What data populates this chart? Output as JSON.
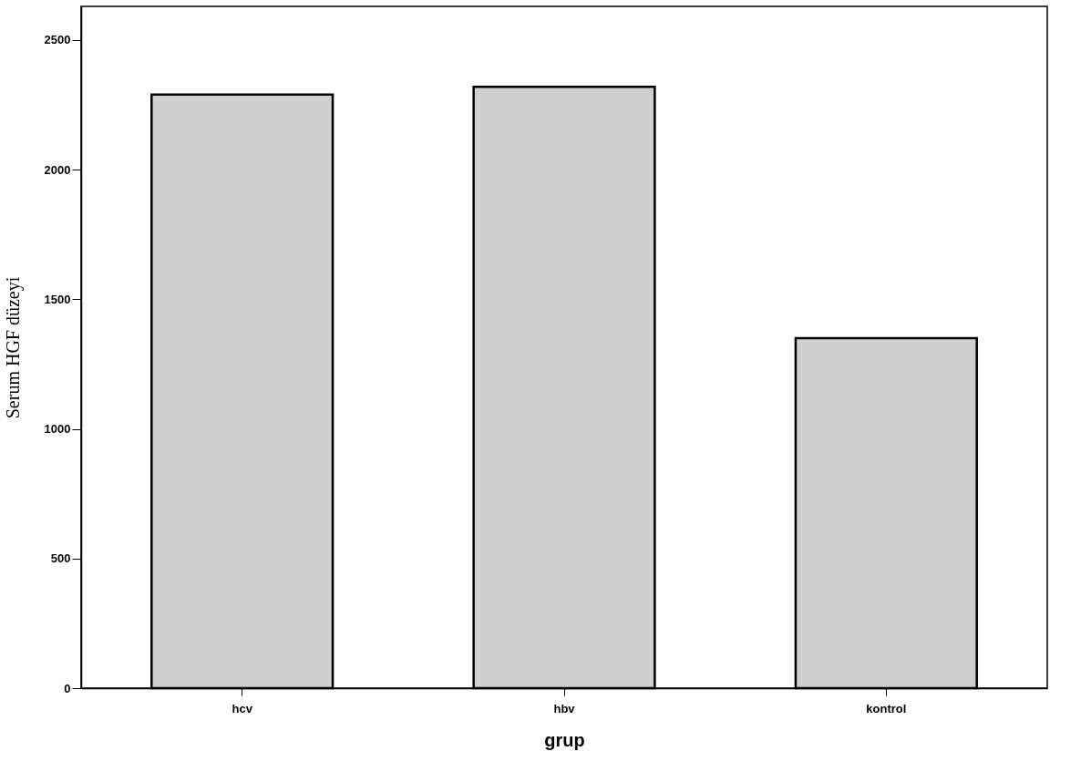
{
  "chart_data": {
    "type": "bar",
    "xlabel": "grup",
    "ylabel": "Serum HGF düzeyi",
    "categories": [
      "hcv",
      "hbv",
      "kontrol"
    ],
    "values": [
      2290,
      2320,
      1350
    ],
    "color": "#cfcfcf",
    "ylim": [
      0,
      2630
    ],
    "yticks": [
      0,
      500,
      1000,
      1500,
      2000,
      2500
    ],
    "grid": false
  }
}
